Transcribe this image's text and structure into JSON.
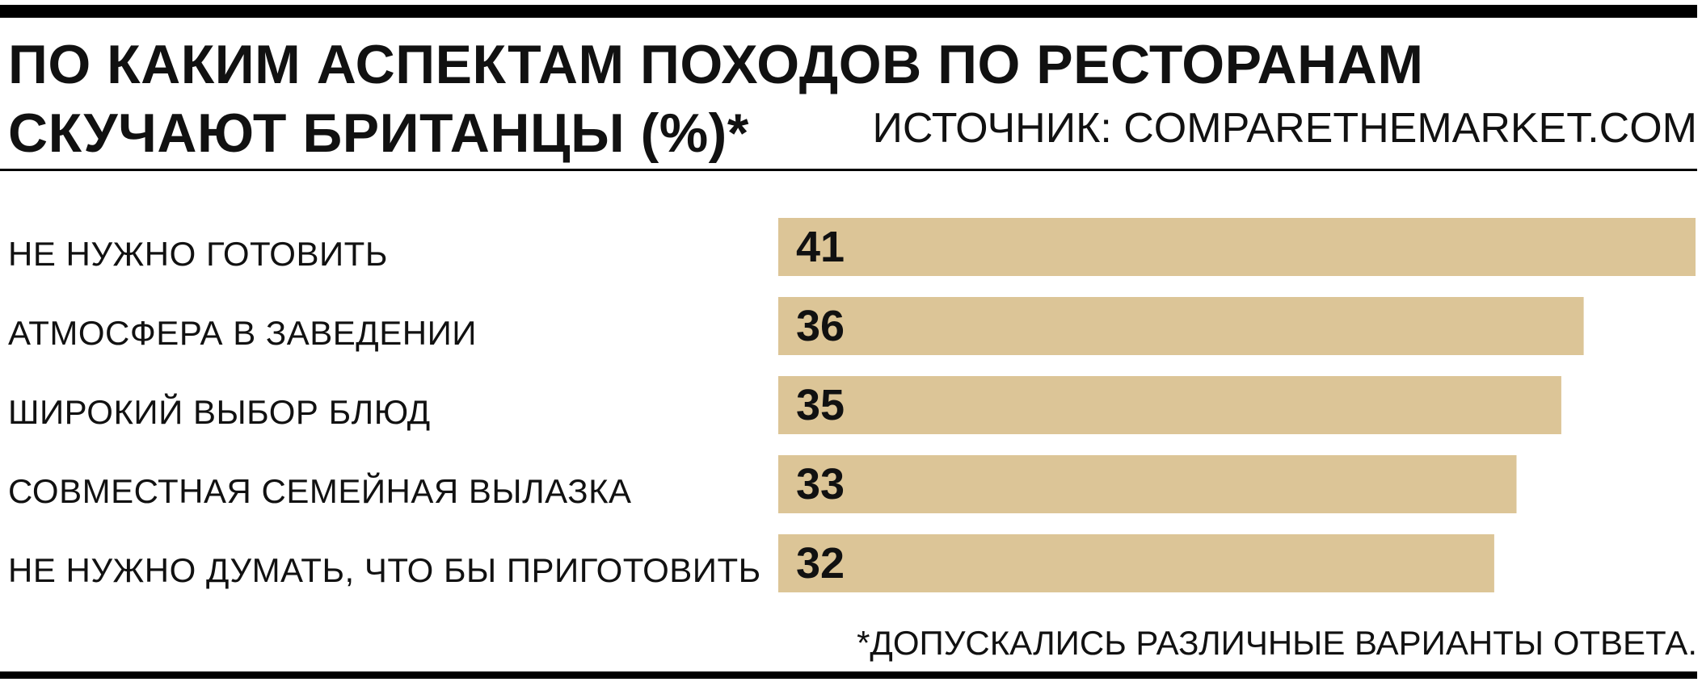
{
  "chart_data": {
    "type": "bar",
    "orientation": "horizontal",
    "title_lines": [
      "ПО КАКИМ АСПЕКТАМ ПОХОДОВ ПО РЕСТОРАНАМ",
      "СКУЧАЮТ БРИТАНЦЫ (%)*"
    ],
    "source": "ИСТОЧНИК: COMPARETHEMARKET.COM",
    "categories": [
      "НЕ НУЖНО ГОТОВИТЬ",
      "АТМОСФЕРА В ЗАВЕДЕНИИ",
      "ШИРОКИЙ ВЫБОР БЛЮД",
      "СОВМЕСТНАЯ СЕМЕЙНАЯ ВЫЛАЗКА",
      "НЕ НУЖНО ДУМАТЬ, ЧТО БЫ ПРИГОТОВИТЬ"
    ],
    "values": [
      41,
      36,
      35,
      33,
      32
    ],
    "value_labels": [
      "41",
      "36",
      "35",
      "33",
      "32"
    ],
    "xlim": [
      0,
      41
    ],
    "grid": false,
    "legend": "none",
    "bar_color": "#dcc597",
    "footnote": "*ДОПУСКАЛИСЬ РАЗЛИЧНЫЕ ВАРИАНТЫ ОТВЕТА."
  }
}
